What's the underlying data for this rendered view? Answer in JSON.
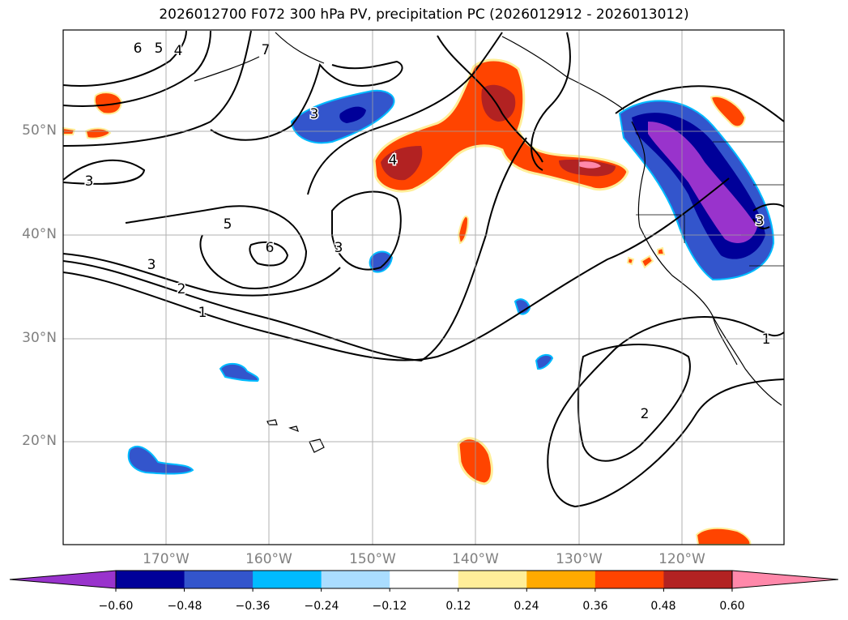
{
  "title": "2026012700 F072 300 hPa PV, precipitation PC (2026012912 - 2026013012)",
  "axes": {
    "lon_labels": [
      "170°W",
      "160°W",
      "150°W",
      "140°W",
      "130°W",
      "120°W"
    ],
    "lat_labels": [
      "20°N",
      "30°N",
      "40°N",
      "50°N"
    ]
  },
  "contours": {
    "pv_labels": [
      "6",
      "5",
      "4",
      "7",
      "3",
      "3",
      "5",
      "6",
      "3",
      "3",
      "2",
      "1",
      "4",
      "2",
      "1",
      "3"
    ]
  },
  "colorbar": {
    "ticks": [
      "−0.60",
      "−0.48",
      "−0.36",
      "−0.24",
      "−0.12",
      "0.12",
      "0.24",
      "0.36",
      "0.48",
      "0.60"
    ],
    "colors": [
      "#9933cc",
      "#000099",
      "#3355cc",
      "#00bbff",
      "#aaddff",
      "#ffffff",
      "#ffee99",
      "#ffaa00",
      "#ff4400",
      "#b22222",
      "#ff88aa"
    ]
  },
  "colors": {
    "neg_strong": "#000099",
    "neg_mid": "#3355cc",
    "neg_light": "#00bbff",
    "neg_extreme": "#9933cc",
    "pos_light": "#ffee99",
    "pos_mid": "#ffaa00",
    "pos_strong": "#ff4400",
    "pos_dark": "#b22222",
    "pos_extreme": "#ff88aa"
  }
}
